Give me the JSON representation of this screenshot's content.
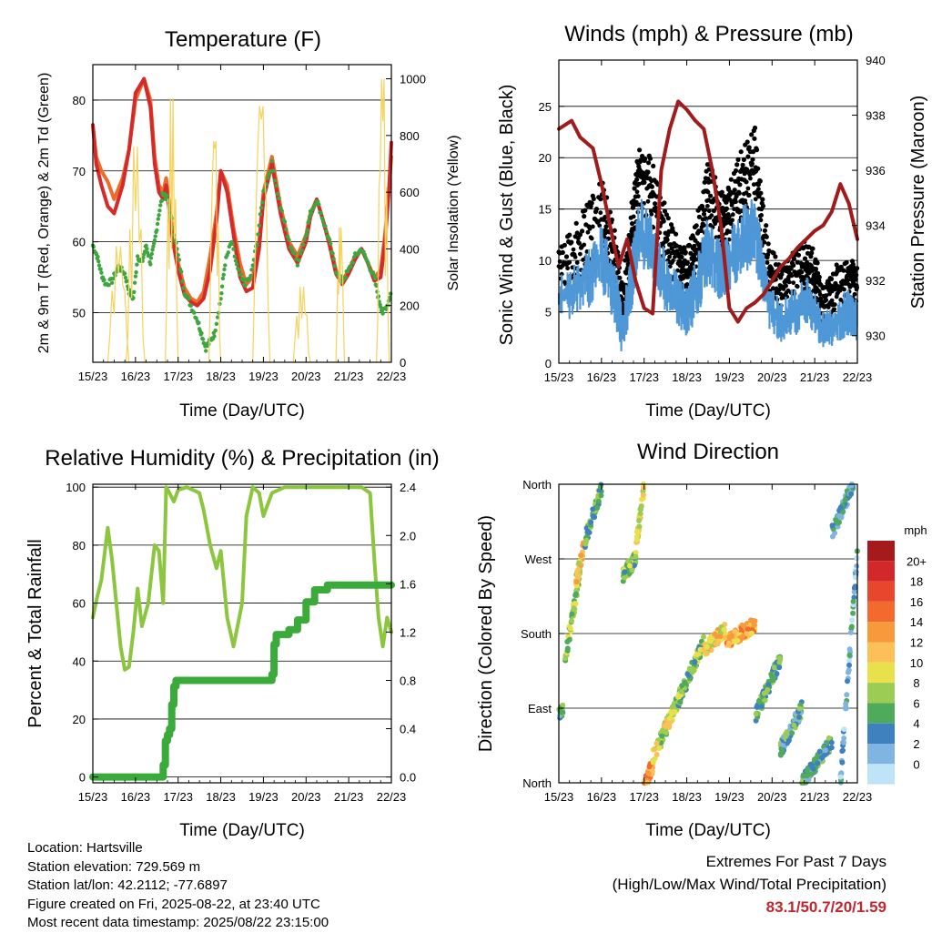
{
  "x_ticks": [
    "15/23",
    "16/23",
    "17/23",
    "18/23",
    "19/23",
    "20/23",
    "21/23",
    "22/23"
  ],
  "x_label": "Time (Day/UTC)",
  "chart_data": [
    {
      "id": "temperature",
      "type": "line",
      "title": "Temperature (F)",
      "ylabel": "2m & 9m T (Red, Orange) & 2m Td (Green)",
      "y2label": "Solar Insolation (Yellow)",
      "xlabel": "Time (Day/UTC)",
      "ylim": [
        43,
        85
      ],
      "y2lim": [
        0,
        1050
      ],
      "yticks": [
        50,
        60,
        70,
        80
      ],
      "y2ticks": [
        0,
        200,
        400,
        600,
        800,
        1000
      ],
      "xlim": [
        0,
        7
      ],
      "series": [
        {
          "axis": "y",
          "color": "#ef6b2c",
          "style": "line",
          "width": 4,
          "x": [
            0,
            0.08,
            0.2,
            0.35,
            0.5,
            0.7,
            0.85,
            1.0,
            1.2,
            1.35,
            1.45,
            1.55,
            1.65,
            1.72,
            1.8,
            1.88,
            2.0,
            2.15,
            2.3,
            2.45,
            2.6,
            2.75,
            2.9,
            3.0,
            3.15,
            3.3,
            3.45,
            3.6,
            3.75,
            3.9,
            4.0,
            4.2,
            4.4,
            4.6,
            4.8,
            5.0,
            5.1,
            5.25,
            5.4,
            5.55,
            5.7,
            5.85,
            6.0,
            6.15,
            6.3,
            6.45,
            6.6,
            6.75,
            6.85,
            6.95,
            7.0
          ],
          "y": [
            76.5,
            72,
            70,
            68.5,
            66,
            69,
            73,
            80,
            83,
            80,
            72,
            68,
            67,
            69,
            65,
            61,
            57,
            53.5,
            52,
            51.5,
            53,
            58,
            64,
            70,
            68,
            62,
            57,
            54,
            55,
            60,
            67,
            72,
            65,
            60,
            58,
            61,
            64,
            66,
            63,
            60,
            56,
            54.5,
            56,
            58,
            59,
            57,
            55,
            56,
            61,
            68,
            72
          ]
        },
        {
          "axis": "y",
          "color": "#d52a2a",
          "style": "line",
          "width": 4,
          "x": [
            0,
            0.08,
            0.2,
            0.35,
            0.5,
            0.7,
            0.85,
            1.0,
            1.2,
            1.35,
            1.45,
            1.55,
            1.65,
            1.72,
            1.8,
            1.88,
            2.0,
            2.15,
            2.3,
            2.45,
            2.6,
            2.75,
            2.9,
            3.0,
            3.15,
            3.3,
            3.45,
            3.6,
            3.75,
            3.9,
            4.0,
            4.2,
            4.4,
            4.6,
            4.8,
            5.0,
            5.1,
            5.25,
            5.4,
            5.55,
            5.7,
            5.85,
            6.0,
            6.15,
            6.3,
            6.45,
            6.6,
            6.75,
            6.85,
            6.95,
            7.0
          ],
          "y": [
            76.5,
            71,
            68,
            65,
            64,
            68,
            73,
            81,
            83,
            79,
            71,
            67,
            66,
            68,
            64,
            60,
            56,
            52.5,
            51.5,
            51,
            52,
            56,
            63,
            70,
            67,
            61,
            55,
            53,
            53.5,
            59,
            66,
            71,
            64,
            59,
            57,
            60,
            63.5,
            66,
            63,
            59.5,
            55.5,
            54,
            55.5,
            57.5,
            59,
            57,
            54.5,
            55,
            60,
            68,
            74
          ]
        },
        {
          "axis": "y",
          "color": "#3fa63f",
          "style": "dots",
          "width": 2.2,
          "x": [
            0,
            0.1,
            0.2,
            0.3,
            0.45,
            0.6,
            0.75,
            0.85,
            0.95,
            1.05,
            1.15,
            1.25,
            1.35,
            1.45,
            1.55,
            1.65,
            1.75,
            1.85,
            2.0,
            2.15,
            2.3,
            2.45,
            2.55,
            2.65,
            2.75,
            2.85,
            3.0,
            3.1,
            3.25,
            3.4,
            3.55,
            3.7,
            3.85,
            4.0,
            4.2,
            4.4,
            4.6,
            4.8,
            5.0,
            5.1,
            5.25,
            5.4,
            5.55,
            5.7,
            5.85,
            6.0,
            6.15,
            6.3,
            6.45,
            6.6,
            6.7,
            6.8,
            6.9,
            7.0
          ],
          "y": [
            59.5,
            58,
            55.5,
            54,
            54.5,
            56.5,
            55.5,
            53,
            52,
            58,
            57,
            59.5,
            57,
            60,
            64,
            67,
            66,
            63,
            58,
            53,
            51,
            49,
            47,
            45,
            46,
            47,
            52,
            57,
            60,
            56,
            54,
            55,
            60,
            67,
            71,
            65,
            60,
            57,
            61,
            64,
            66,
            63,
            60,
            56,
            54.5,
            56,
            58,
            59,
            57,
            55,
            52,
            50,
            51,
            53
          ]
        },
        {
          "axis": "y2",
          "color": "#f4d35e",
          "style": "peaks",
          "width": 1.2,
          "peaks": [
            [
              0.35,
              0.6,
              0.85
            ],
            [
              0.78,
              1.0,
              1.22
            ],
            [
              1.7,
              1.85,
              2.0
            ],
            [
              2.72,
              2.86,
              3.0
            ],
            [
              3.75,
              3.95,
              4.15
            ],
            [
              4.7,
              4.9,
              5.1
            ],
            [
              5.7,
              5.8,
              5.9
            ],
            [
              6.65,
              6.8,
              6.95
            ]
          ],
          "peak_values": [
            430,
            800,
            980,
            820,
            950,
            280,
            500,
            1050
          ]
        }
      ]
    },
    {
      "id": "winds",
      "type": "line",
      "title": "Winds (mph) & Pressure (mb)",
      "ylabel": "Sonic Wind & Gust (Blue, Black)",
      "y2label": "Station Pressure (Maroon)",
      "xlabel": "Time (Day/UTC)",
      "ylim": [
        0,
        29.5
      ],
      "y2lim": [
        929,
        940
      ],
      "yticks": [
        0,
        5,
        10,
        15,
        20,
        25
      ],
      "y2ticks": [
        930,
        932,
        934,
        936,
        938,
        940
      ],
      "xlim": [
        0,
        7
      ],
      "series": [
        {
          "axis": "y",
          "name": "wind",
          "color": "#4f97d6",
          "style": "band",
          "x": [
            0,
            0.5,
            1.0,
            1.3,
            1.5,
            1.7,
            1.9,
            2.2,
            2.5,
            2.8,
            3.0,
            3.2,
            3.5,
            3.8,
            4.0,
            4.3,
            4.6,
            4.9,
            5.2,
            5.5,
            5.8,
            6.0,
            6.2,
            6.5,
            6.8,
            7.0
          ],
          "center": [
            6,
            7.5,
            10,
            7,
            3,
            8,
            13,
            11,
            8,
            6,
            5,
            7,
            11,
            9,
            10,
            12,
            13,
            6,
            4,
            5,
            6,
            5,
            3,
            4,
            5,
            4
          ],
          "spread": [
            2.5,
            3,
            3.5,
            3,
            2.5,
            3,
            3.5,
            3,
            3,
            2.5,
            2.5,
            3,
            3.5,
            3,
            3,
            3.5,
            3.5,
            2.5,
            2,
            2.5,
            2.5,
            2,
            2,
            2,
            2.5,
            2
          ]
        },
        {
          "axis": "y",
          "name": "gust",
          "color": "#000000",
          "style": "band",
          "x": [
            0,
            0.5,
            1.0,
            1.3,
            1.5,
            1.7,
            1.9,
            2.2,
            2.5,
            2.8,
            3.0,
            3.2,
            3.5,
            3.8,
            4.0,
            4.3,
            4.6,
            4.9,
            5.2,
            5.5,
            5.8,
            6.0,
            6.2,
            6.5,
            6.8,
            7.0
          ],
          "center": [
            9,
            11,
            14,
            10,
            5,
            12,
            18,
            16,
            12,
            9,
            8,
            10,
            16,
            13,
            14,
            17,
            19,
            9,
            7,
            8,
            9,
            8,
            5,
            7,
            8,
            7
          ],
          "spread": [
            3,
            3.5,
            4,
            3.5,
            3,
            3.5,
            4,
            4,
            3.5,
            3,
            3,
            3.5,
            4,
            3.5,
            3.5,
            4,
            4,
            3,
            2.5,
            3,
            3,
            3,
            2.5,
            2.5,
            3,
            2.5
          ]
        },
        {
          "axis": "y2",
          "name": "pressure",
          "color": "#a01b1b",
          "style": "line",
          "width": 4,
          "x": [
            0,
            0.3,
            0.5,
            0.8,
            1.0,
            1.2,
            1.4,
            1.6,
            1.8,
            2.0,
            2.2,
            2.4,
            2.6,
            2.8,
            3.0,
            3.2,
            3.4,
            3.6,
            3.8,
            4.0,
            4.2,
            4.4,
            4.6,
            4.8,
            5.0,
            5.2,
            5.4,
            5.6,
            5.8,
            6.0,
            6.2,
            6.4,
            6.6,
            6.8,
            7.0
          ],
          "y": [
            937.5,
            937.8,
            937.2,
            936.8,
            935.5,
            934,
            932.5,
            933.5,
            932,
            931,
            930.8,
            936,
            937.5,
            938.5,
            938.2,
            937.8,
            937.5,
            936,
            934,
            931,
            930.5,
            931,
            931.2,
            931.5,
            932,
            932.5,
            932.8,
            933.2,
            933.5,
            933.8,
            934,
            934.5,
            935.5,
            934.8,
            933.5
          ]
        }
      ]
    },
    {
      "id": "humidity",
      "type": "line",
      "title": "Relative Humidity (%) & Precipitation (in)",
      "ylabel": "Percent & Total Rainfall",
      "xlabel": "Time (Day/UTC)",
      "ylim": [
        -2,
        101
      ],
      "y2lim": [
        -0.048,
        2.424
      ],
      "yticks": [
        0,
        20,
        40,
        60,
        80,
        100
      ],
      "y2ticks": [
        "0.0",
        "0.4",
        "0.8",
        "1.2",
        "1.6",
        "2.0",
        "2.4"
      ],
      "xlim": [
        0,
        7
      ],
      "series": [
        {
          "axis": "y",
          "name": "rh",
          "color": "#8cc63f",
          "style": "line",
          "width": 4,
          "x": [
            0,
            0.1,
            0.2,
            0.35,
            0.45,
            0.55,
            0.65,
            0.75,
            0.85,
            0.95,
            1.05,
            1.15,
            1.3,
            1.45,
            1.55,
            1.65,
            1.72,
            1.8,
            1.9,
            2.0,
            2.2,
            2.5,
            2.6,
            2.75,
            2.9,
            3.0,
            3.15,
            3.3,
            3.5,
            3.6,
            3.75,
            3.9,
            4.0,
            4.2,
            4.5,
            4.8,
            5.0,
            5.5,
            6.0,
            6.3,
            6.5,
            6.6,
            6.7,
            6.8,
            6.9,
            7.0
          ],
          "y": [
            55,
            62,
            68,
            86,
            75,
            60,
            45,
            37,
            38,
            50,
            65,
            52,
            60,
            80,
            78,
            60,
            100,
            98,
            95,
            99,
            100,
            98,
            92,
            80,
            72,
            78,
            55,
            45,
            60,
            90,
            100,
            98,
            90,
            98,
            100,
            100,
            100,
            100,
            100,
            100,
            98,
            75,
            55,
            45,
            55,
            50
          ]
        },
        {
          "axis": "y2",
          "name": "precip",
          "color": "#3aaa3a",
          "style": "steps",
          "width": 8,
          "x": [
            0,
            1.0,
            1.6,
            1.65,
            1.7,
            1.75,
            1.8,
            1.85,
            1.9,
            1.95,
            2.0,
            3.5,
            4.2,
            4.25,
            4.3,
            4.4,
            4.6,
            4.8,
            5.0,
            5.2,
            5.5,
            6.0,
            6.5,
            7.0
          ],
          "y": [
            0,
            0,
            0,
            0.1,
            0.3,
            0.35,
            0.4,
            0.6,
            0.75,
            0.8,
            0.8,
            0.8,
            0.85,
            1.1,
            1.18,
            1.18,
            1.22,
            1.3,
            1.45,
            1.55,
            1.59,
            1.59,
            1.59,
            1.59
          ]
        }
      ]
    },
    {
      "id": "wind_direction",
      "type": "scatter",
      "title": "Wind Direction",
      "ylabel": "Direction (Colored By Speed)",
      "xlabel": "Time (Day/UTC)",
      "ylim": [
        0,
        360
      ],
      "xlim": [
        0,
        7
      ],
      "yticks": [
        "North",
        "East",
        "South",
        "West",
        "North"
      ],
      "ytick_values": [
        0,
        90,
        180,
        270,
        360
      ],
      "colorbar_title": "mph",
      "colorbar_labels": [
        "20+",
        "18",
        "16",
        "14",
        "12",
        "10",
        "8",
        "6",
        "4",
        "2",
        "0"
      ],
      "colorbar_colors": [
        "#a51b1b",
        "#d2282b",
        "#e8472e",
        "#f26a2e",
        "#f89a3b",
        "#fbc158",
        "#e9e14c",
        "#9dcc55",
        "#4faa5c",
        "#3f80bf",
        "#7fb5e0",
        "#bfe4f7"
      ],
      "clusters": [
        {
          "x0": 0.0,
          "x1": 0.1,
          "d0": 82,
          "d1": 92,
          "speed": 5
        },
        {
          "x0": 0.15,
          "x1": 0.5,
          "d0": 150,
          "d1": 255,
          "speed": 8
        },
        {
          "x0": 0.4,
          "x1": 0.6,
          "d0": 240,
          "d1": 290,
          "speed": 11
        },
        {
          "x0": 0.6,
          "x1": 1.0,
          "d0": 290,
          "d1": 355,
          "speed": 6
        },
        {
          "x0": 1.5,
          "x1": 1.8,
          "d0": 250,
          "d1": 270,
          "speed": 7
        },
        {
          "x0": 1.8,
          "x1": 2.0,
          "d0": 280,
          "d1": 360,
          "speed": 10
        },
        {
          "x0": 2.0,
          "x1": 2.2,
          "d0": 0,
          "d1": 20,
          "speed": 14
        },
        {
          "x0": 2.2,
          "x1": 2.8,
          "d0": 30,
          "d1": 100,
          "speed": 9
        },
        {
          "x0": 2.8,
          "x1": 3.4,
          "d0": 100,
          "d1": 170,
          "speed": 7
        },
        {
          "x0": 3.4,
          "x1": 3.9,
          "d0": 160,
          "d1": 185,
          "speed": 11
        },
        {
          "x0": 3.9,
          "x1": 4.6,
          "d0": 170,
          "d1": 190,
          "speed": 13
        },
        {
          "x0": 4.6,
          "x1": 5.2,
          "d0": 80,
          "d1": 150,
          "speed": 6
        },
        {
          "x0": 5.2,
          "x1": 5.7,
          "d0": 40,
          "d1": 90,
          "speed": 5
        },
        {
          "x0": 5.7,
          "x1": 6.4,
          "d0": 0,
          "d1": 50,
          "speed": 5
        },
        {
          "x0": 6.4,
          "x1": 6.9,
          "d0": 300,
          "d1": 360,
          "speed": 4
        },
        {
          "x0": 6.6,
          "x1": 7.0,
          "d0": 0,
          "d1": 280,
          "speed": 3
        }
      ]
    }
  ],
  "info": {
    "location": "Location: Hartsville",
    "elevation": "Station elevation: 729.569 m",
    "latlon": "Station lat/lon: 42.2112; -77.6897",
    "created": "Figure created on Fri, 2025-08-22, at 23:40 UTC",
    "recent": "Most recent data timestamp: 2025/08/22 23:15:00"
  },
  "extremes": {
    "line1": "Extremes For Past 7 Days",
    "line2": "(High/Low/Max Wind/Total Precipitation)",
    "values": "83.1/50.7/20/1.59"
  }
}
